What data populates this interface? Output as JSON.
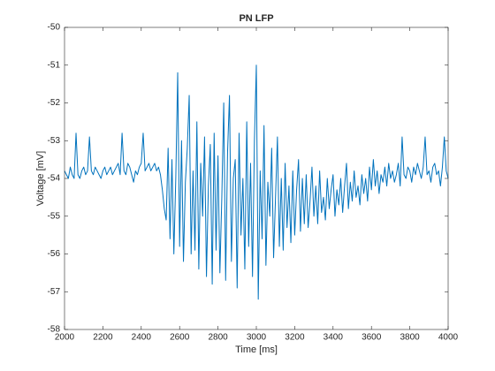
{
  "chart_data": {
    "type": "line",
    "title": "PN LFP",
    "xlabel": "Time [ms]",
    "ylabel": "Voltage [mV]",
    "x": [
      2000,
      2010,
      2020,
      2030,
      2040,
      2050,
      2060,
      2070,
      2080,
      2090,
      2100,
      2110,
      2120,
      2130,
      2140,
      2150,
      2160,
      2170,
      2180,
      2190,
      2200,
      2210,
      2220,
      2230,
      2240,
      2250,
      2260,
      2270,
      2280,
      2290,
      2300,
      2310,
      2320,
      2330,
      2340,
      2350,
      2360,
      2370,
      2380,
      2390,
      2400,
      2410,
      2420,
      2430,
      2440,
      2450,
      2460,
      2470,
      2480,
      2490,
      2500,
      2510,
      2520,
      2530,
      2540,
      2550,
      2560,
      2570,
      2580,
      2590,
      2600,
      2610,
      2620,
      2630,
      2640,
      2650,
      2660,
      2670,
      2680,
      2690,
      2700,
      2710,
      2720,
      2730,
      2740,
      2750,
      2760,
      2770,
      2780,
      2790,
      2800,
      2810,
      2820,
      2830,
      2840,
      2850,
      2860,
      2870,
      2880,
      2890,
      2900,
      2910,
      2920,
      2930,
      2940,
      2950,
      2960,
      2970,
      2980,
      2990,
      3000,
      3010,
      3020,
      3030,
      3040,
      3050,
      3060,
      3070,
      3080,
      3090,
      3100,
      3110,
      3120,
      3130,
      3140,
      3150,
      3160,
      3170,
      3180,
      3190,
      3200,
      3210,
      3220,
      3230,
      3240,
      3250,
      3260,
      3270,
      3280,
      3290,
      3300,
      3310,
      3320,
      3330,
      3340,
      3350,
      3360,
      3370,
      3380,
      3390,
      3400,
      3410,
      3420,
      3430,
      3440,
      3450,
      3460,
      3470,
      3480,
      3490,
      3500,
      3510,
      3520,
      3530,
      3540,
      3550,
      3560,
      3570,
      3580,
      3590,
      3600,
      3610,
      3620,
      3630,
      3640,
      3650,
      3660,
      3670,
      3680,
      3690,
      3700,
      3710,
      3720,
      3730,
      3740,
      3750,
      3760,
      3770,
      3780,
      3790,
      3800,
      3810,
      3820,
      3830,
      3840,
      3850,
      3860,
      3870,
      3880,
      3890,
      3900,
      3910,
      3920,
      3930,
      3940,
      3950,
      3960,
      3970,
      3980,
      3990,
      4000
    ],
    "series": [
      {
        "color": "#0072bd",
        "values": [
          -53.8,
          -53.9,
          -54.0,
          -53.7,
          -53.9,
          -54.0,
          -52.8,
          -53.9,
          -54.0,
          -53.8,
          -53.7,
          -53.9,
          -53.8,
          -52.9,
          -53.8,
          -53.9,
          -53.7,
          -53.8,
          -53.9,
          -54.0,
          -53.8,
          -53.7,
          -53.9,
          -53.8,
          -53.7,
          -53.9,
          -53.8,
          -53.7,
          -53.6,
          -53.9,
          -52.8,
          -53.8,
          -53.9,
          -53.6,
          -53.7,
          -53.9,
          -54.1,
          -53.8,
          -53.9,
          -53.7,
          -53.6,
          -52.8,
          -53.8,
          -53.7,
          -53.6,
          -53.8,
          -53.7,
          -53.6,
          -53.8,
          -53.7,
          -53.9,
          -54.3,
          -54.8,
          -55.1,
          -53.2,
          -55.6,
          -53.5,
          -56.0,
          -54.0,
          -51.2,
          -55.8,
          -53.0,
          -56.2,
          -54.1,
          -53.2,
          -51.8,
          -56.0,
          -53.8,
          -55.9,
          -52.5,
          -56.4,
          -53.6,
          -55.0,
          -52.9,
          -56.6,
          -54.2,
          -53.1,
          -56.8,
          -52.8,
          -55.9,
          -53.4,
          -56.5,
          -54.5,
          -52.0,
          -56.7,
          -53.3,
          -51.8,
          -56.2,
          -54.0,
          -53.5,
          -56.9,
          -52.8,
          -55.5,
          -54.0,
          -56.4,
          -52.5,
          -55.8,
          -53.6,
          -56.6,
          -53.0,
          -51.0,
          -57.2,
          -53.8,
          -55.6,
          -52.6,
          -56.3,
          -54.1,
          -55.0,
          -53.2,
          -56.1,
          -54.5,
          -52.9,
          -55.8,
          -54.0,
          -55.9,
          -53.6,
          -55.3,
          -54.2,
          -55.7,
          -53.8,
          -55.5,
          -54.3,
          -53.5,
          -55.4,
          -54.0,
          -55.2,
          -53.9,
          -55.3,
          -54.6,
          -53.7,
          -55.0,
          -54.2,
          -55.2,
          -53.8,
          -54.9,
          -54.5,
          -55.1,
          -54.0,
          -54.8,
          -54.3,
          -53.9,
          -55.0,
          -54.3,
          -54.7,
          -54.0,
          -54.9,
          -54.2,
          -53.6,
          -54.8,
          -54.1,
          -54.6,
          -53.8,
          -54.5,
          -54.2,
          -54.7,
          -53.9,
          -54.4,
          -54.0,
          -54.6,
          -53.7,
          -54.3,
          -53.5,
          -54.2,
          -53.8,
          -54.4,
          -53.9,
          -54.1,
          -53.7,
          -54.2,
          -53.6,
          -54.0,
          -53.8,
          -54.1,
          -53.9,
          -53.6,
          -54.2,
          -52.9,
          -53.9,
          -54.0,
          -53.7,
          -53.8,
          -54.1,
          -53.7,
          -53.9,
          -53.6,
          -53.8,
          -54.0,
          -53.7,
          -52.9,
          -53.9,
          -53.8,
          -54.1,
          -53.7,
          -53.6,
          -53.9,
          -53.8,
          -54.2,
          -53.7,
          -52.9,
          -53.8,
          -54.0
        ]
      }
    ],
    "xlim": [
      2000,
      4000
    ],
    "xticks": [
      2000,
      2200,
      2400,
      2600,
      2800,
      3000,
      3200,
      3400,
      3600,
      3800,
      4000
    ],
    "ylim": [
      -58,
      -50
    ],
    "yticks": [
      -58,
      -57,
      -56,
      -55,
      -54,
      -53,
      -52,
      -51,
      -50
    ],
    "grid": false
  }
}
